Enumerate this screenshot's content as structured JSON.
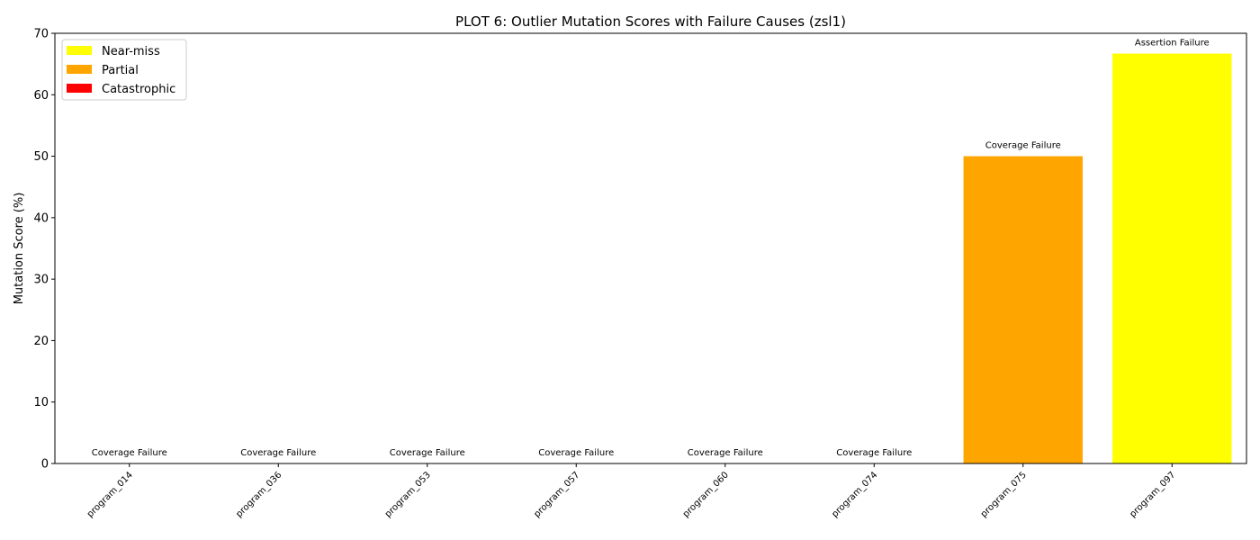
{
  "chart_data": {
    "type": "bar",
    "title": "PLOT 6: Outlier Mutation Scores with Failure Causes (zsl1)",
    "xlabel": "",
    "ylabel": "Mutation Score (%)",
    "ylim": [
      0,
      70
    ],
    "yticks": [
      0,
      10,
      20,
      30,
      40,
      50,
      60,
      70
    ],
    "grid": false,
    "legend_position": "top-left",
    "categories": [
      "program_014",
      "program_036",
      "program_053",
      "program_057",
      "program_060",
      "program_074",
      "program_075",
      "program_097"
    ],
    "values": [
      0,
      0,
      0,
      0,
      0,
      0,
      50.0,
      66.7
    ],
    "annotations": [
      "Coverage Failure",
      "Coverage Failure",
      "Coverage Failure",
      "Coverage Failure",
      "Coverage Failure",
      "Coverage Failure",
      "Coverage Failure",
      "Assertion Failure"
    ],
    "bar_categories": [
      "Catastrophic",
      "Catastrophic",
      "Catastrophic",
      "Catastrophic",
      "Catastrophic",
      "Catastrophic",
      "Partial",
      "Near-miss"
    ],
    "legend": [
      {
        "label": "Near-miss",
        "color": "#ffff00"
      },
      {
        "label": "Partial",
        "color": "#ffa500"
      },
      {
        "label": "Catastrophic",
        "color": "#ff0000"
      }
    ]
  }
}
